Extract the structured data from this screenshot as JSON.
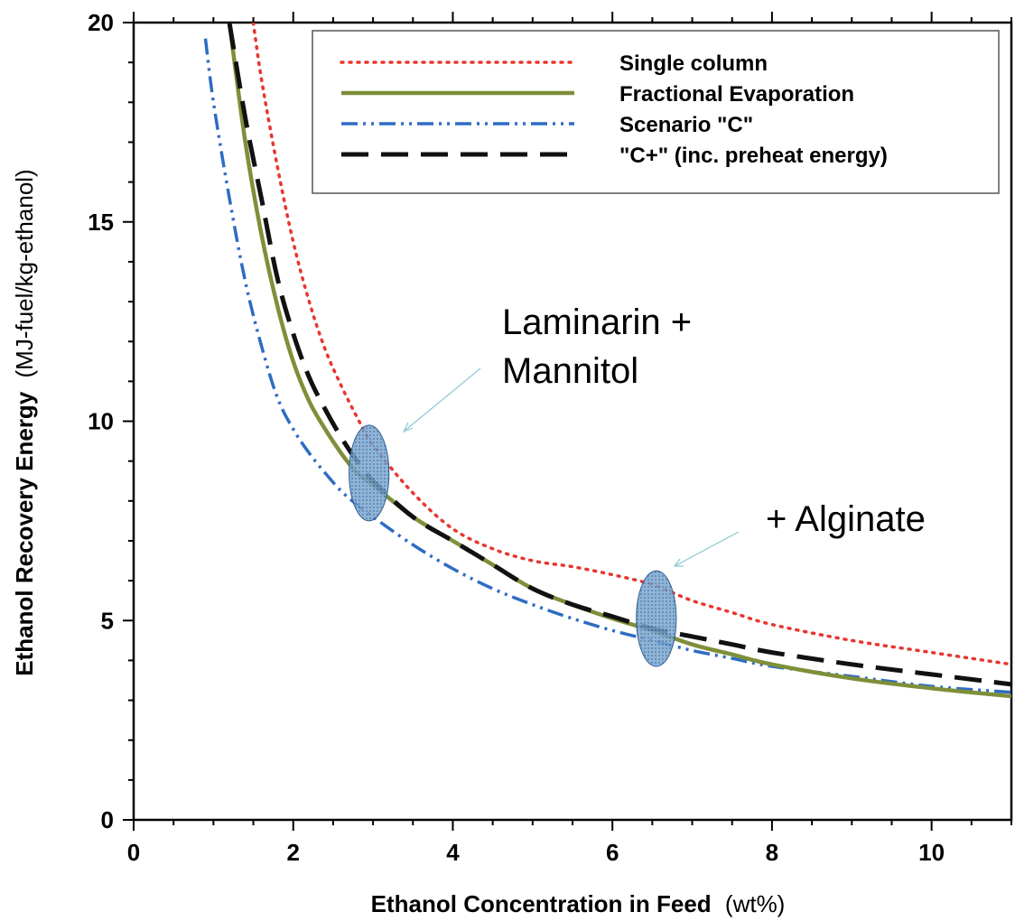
{
  "chart_data": {
    "type": "line",
    "xlabel": "Ethanol Concentration in Feed",
    "xlabel_unit": "(wt%)",
    "ylabel": "Ethanol Recovery Energy",
    "ylabel_unit": "(MJ-fuel/kg-ethanol)",
    "xlim": [
      0,
      11
    ],
    "ylim": [
      0,
      20
    ],
    "x_ticks": [
      0,
      2,
      4,
      6,
      8,
      10
    ],
    "y_ticks": [
      0,
      5,
      10,
      15,
      20
    ],
    "x_tick_labels": [
      "0",
      "2",
      "4",
      "6",
      "8",
      "10"
    ],
    "y_tick_labels": [
      "0",
      "5",
      "10",
      "15",
      "20"
    ],
    "grid": false,
    "legend_position": "top-right",
    "series": [
      {
        "name": "Single column",
        "color": "#e8362e",
        "style": "dotted",
        "points": [
          [
            1.5,
            20
          ],
          [
            1.6,
            18.6
          ],
          [
            1.8,
            16.4
          ],
          [
            2.0,
            14.5
          ],
          [
            2.2,
            13.0
          ],
          [
            2.4,
            11.8
          ],
          [
            2.6,
            10.9
          ],
          [
            2.8,
            10.1
          ],
          [
            3.0,
            9.4
          ],
          [
            3.5,
            8.2
          ],
          [
            4.0,
            7.3
          ],
          [
            4.5,
            6.8
          ],
          [
            5.0,
            6.5
          ],
          [
            5.5,
            6.35
          ],
          [
            6.0,
            6.15
          ],
          [
            6.5,
            5.9
          ],
          [
            7.0,
            5.5
          ],
          [
            7.5,
            5.2
          ],
          [
            8.0,
            4.9
          ],
          [
            9.0,
            4.5
          ],
          [
            10.0,
            4.2
          ],
          [
            11.0,
            3.9
          ]
        ]
      },
      {
        "name": "Fractional Evaporation",
        "color": "#7e8f3a",
        "style": "solid",
        "points": [
          [
            1.2,
            20
          ],
          [
            1.4,
            17.0
          ],
          [
            1.6,
            14.7
          ],
          [
            1.8,
            12.9
          ],
          [
            2.0,
            11.5
          ],
          [
            2.2,
            10.5
          ],
          [
            2.4,
            9.8
          ],
          [
            2.6,
            9.2
          ],
          [
            2.8,
            8.7
          ],
          [
            3.0,
            8.4
          ],
          [
            3.5,
            7.6
          ],
          [
            4.0,
            7.0
          ],
          [
            4.5,
            6.4
          ],
          [
            5.0,
            5.8
          ],
          [
            5.5,
            5.4
          ],
          [
            6.0,
            5.05
          ],
          [
            6.5,
            4.75
          ],
          [
            7.0,
            4.4
          ],
          [
            7.5,
            4.15
          ],
          [
            8.0,
            3.9
          ],
          [
            9.0,
            3.55
          ],
          [
            10.0,
            3.3
          ],
          [
            11.0,
            3.1
          ]
        ]
      },
      {
        "name": "Scenario \"C\"",
        "color": "#2e6cc4",
        "style": "dashdotdot",
        "points": [
          [
            0.9,
            19.6
          ],
          [
            1.0,
            18.0
          ],
          [
            1.2,
            15.6
          ],
          [
            1.4,
            13.5
          ],
          [
            1.6,
            11.9
          ],
          [
            1.8,
            10.6
          ],
          [
            2.0,
            9.8
          ],
          [
            2.2,
            9.2
          ],
          [
            2.4,
            8.7
          ],
          [
            2.6,
            8.25
          ],
          [
            2.8,
            7.9
          ],
          [
            3.0,
            7.6
          ],
          [
            3.5,
            6.9
          ],
          [
            4.0,
            6.3
          ],
          [
            4.5,
            5.8
          ],
          [
            5.0,
            5.4
          ],
          [
            5.5,
            5.05
          ],
          [
            6.0,
            4.75
          ],
          [
            6.5,
            4.5
          ],
          [
            7.0,
            4.25
          ],
          [
            7.5,
            4.05
          ],
          [
            8.0,
            3.85
          ],
          [
            9.0,
            3.6
          ],
          [
            10.0,
            3.35
          ],
          [
            11.0,
            3.2
          ]
        ]
      },
      {
        "name": "\"C+\" (inc. preheat energy)",
        "color": "#111111",
        "style": "dashed",
        "points": [
          [
            1.2,
            20
          ],
          [
            1.4,
            17.6
          ],
          [
            1.6,
            15.6
          ],
          [
            1.8,
            13.6
          ],
          [
            2.0,
            12.2
          ],
          [
            2.2,
            11.1
          ],
          [
            2.4,
            10.3
          ],
          [
            2.6,
            9.6
          ],
          [
            2.8,
            9.0
          ],
          [
            3.0,
            8.5
          ],
          [
            3.5,
            7.6
          ],
          [
            4.0,
            7.0
          ],
          [
            4.5,
            6.4
          ],
          [
            5.0,
            5.8
          ],
          [
            5.5,
            5.4
          ],
          [
            6.0,
            5.1
          ],
          [
            6.5,
            4.8
          ],
          [
            7.0,
            4.6
          ],
          [
            7.5,
            4.4
          ],
          [
            8.0,
            4.2
          ],
          [
            9.0,
            3.9
          ],
          [
            10.0,
            3.65
          ],
          [
            11.0,
            3.4
          ]
        ]
      }
    ],
    "highlights": [
      {
        "label": "Laminarin + Mannitol",
        "x": 2.95,
        "y": 8.7,
        "rx": 0.25,
        "ry": 1.2,
        "color": "#5a8ec0"
      },
      {
        "label": "+ Alginate",
        "x": 6.55,
        "y": 5.05,
        "rx": 0.25,
        "ry": 1.2,
        "color": "#5a8ec0"
      }
    ],
    "annotations": {
      "laminarin_line1": "Laminarin +",
      "laminarin_line2": "Mannitol",
      "alginate": "+ Alginate"
    }
  }
}
